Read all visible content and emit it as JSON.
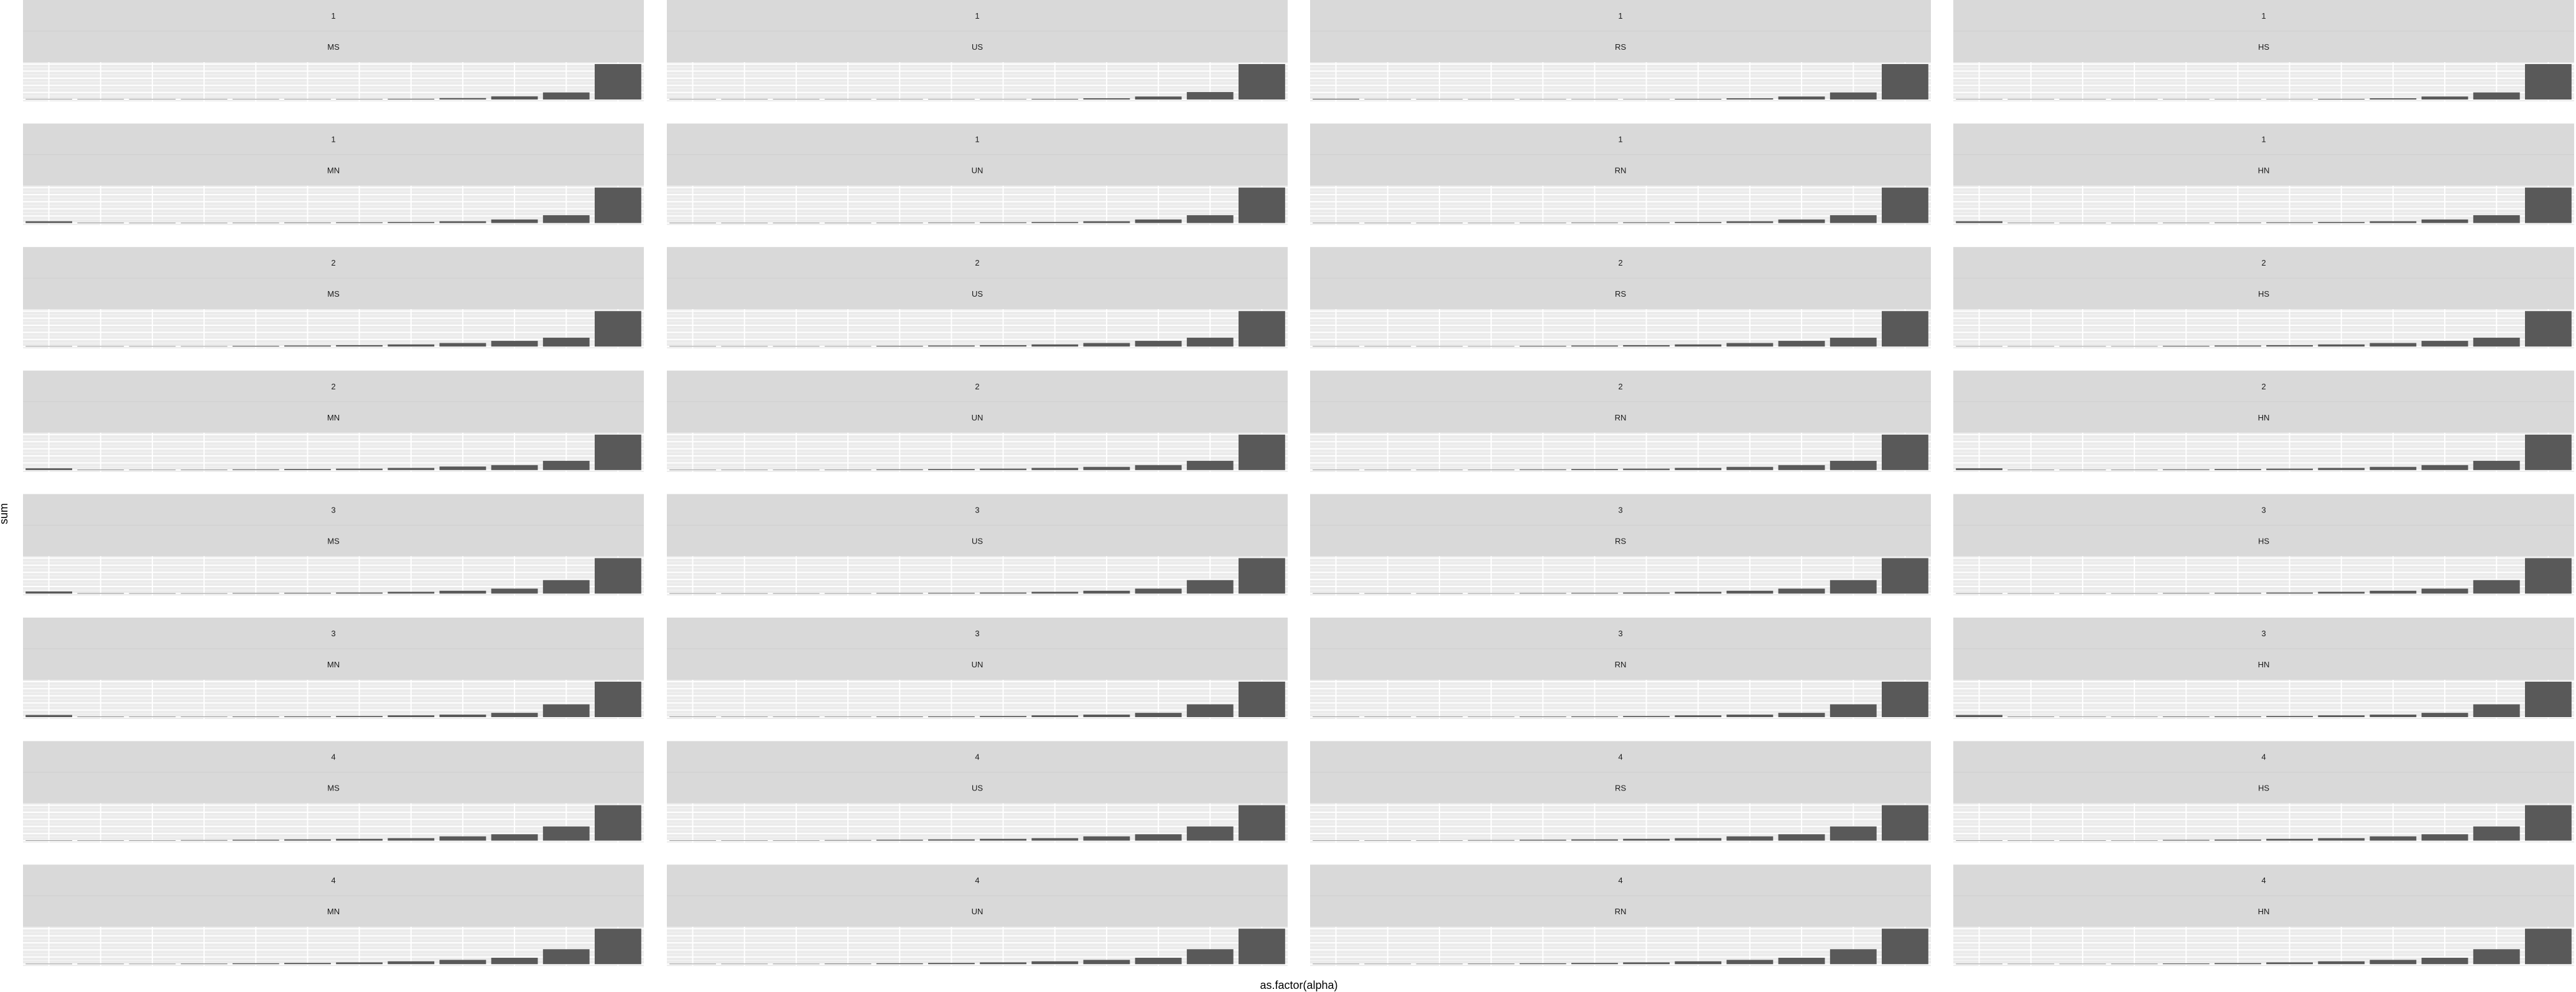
{
  "chart_data": {
    "type": "bar",
    "xlabel": "as.factor(alpha)",
    "ylabel": "sum",
    "categories": [
      "",
      "",
      "",
      "",
      "",
      "",
      "",
      "",
      "",
      "",
      "",
      ""
    ],
    "grid": true,
    "colors": {
      "bar": "#595959",
      "panel_background": "#ebebeb",
      "strip_background": "#d9d9d9",
      "grid_major": "#ffffff",
      "grid_minor": "#f5f5f5"
    },
    "panels": [
      {
        "row_label": "1",
        "col_label": "MS",
        "values": [
          0.005,
          0.004,
          0.003,
          0.004,
          0.006,
          0.008,
          0.012,
          0.02,
          0.04,
          0.09,
          0.2,
          1.0
        ]
      },
      {
        "row_label": "1",
        "col_label": "US",
        "values": [
          0.004,
          0.003,
          0.003,
          0.004,
          0.005,
          0.007,
          0.01,
          0.018,
          0.035,
          0.085,
          0.21,
          1.0
        ]
      },
      {
        "row_label": "1",
        "col_label": "RS",
        "values": [
          0.02,
          0.004,
          0.003,
          0.004,
          0.005,
          0.007,
          0.01,
          0.018,
          0.035,
          0.085,
          0.2,
          1.0
        ]
      },
      {
        "row_label": "1",
        "col_label": "HS",
        "values": [
          0.004,
          0.003,
          0.003,
          0.004,
          0.005,
          0.007,
          0.01,
          0.018,
          0.035,
          0.085,
          0.2,
          1.0
        ]
      },
      {
        "row_label": "1",
        "col_label": "MN",
        "values": [
          0.05,
          0.012,
          0.01,
          0.01,
          0.012,
          0.015,
          0.02,
          0.03,
          0.05,
          0.1,
          0.22,
          1.0
        ]
      },
      {
        "row_label": "1",
        "col_label": "UN",
        "values": [
          0.01,
          0.008,
          0.008,
          0.01,
          0.012,
          0.015,
          0.02,
          0.03,
          0.05,
          0.1,
          0.22,
          1.0
        ]
      },
      {
        "row_label": "1",
        "col_label": "RN",
        "values": [
          0.01,
          0.008,
          0.008,
          0.01,
          0.012,
          0.015,
          0.02,
          0.03,
          0.05,
          0.1,
          0.22,
          1.0
        ]
      },
      {
        "row_label": "1",
        "col_label": "HN",
        "values": [
          0.05,
          0.012,
          0.01,
          0.01,
          0.012,
          0.015,
          0.02,
          0.03,
          0.05,
          0.1,
          0.22,
          1.0
        ]
      },
      {
        "row_label": "2",
        "col_label": "MS",
        "values": [
          0.004,
          0.004,
          0.005,
          0.01,
          0.02,
          0.03,
          0.04,
          0.06,
          0.1,
          0.16,
          0.25,
          1.0
        ]
      },
      {
        "row_label": "2",
        "col_label": "US",
        "values": [
          0.004,
          0.004,
          0.005,
          0.01,
          0.02,
          0.03,
          0.04,
          0.06,
          0.1,
          0.16,
          0.25,
          1.0
        ]
      },
      {
        "row_label": "2",
        "col_label": "RS",
        "values": [
          0.002,
          0.002,
          0.004,
          0.008,
          0.02,
          0.03,
          0.04,
          0.06,
          0.1,
          0.16,
          0.25,
          1.0
        ]
      },
      {
        "row_label": "2",
        "col_label": "HS",
        "values": [
          0.002,
          0.002,
          0.004,
          0.008,
          0.02,
          0.03,
          0.04,
          0.06,
          0.1,
          0.16,
          0.25,
          1.0
        ]
      },
      {
        "row_label": "2",
        "col_label": "MN",
        "values": [
          0.05,
          0.012,
          0.01,
          0.012,
          0.02,
          0.03,
          0.04,
          0.06,
          0.1,
          0.14,
          0.26,
          1.0
        ]
      },
      {
        "row_label": "2",
        "col_label": "UN",
        "values": [
          0.01,
          0.01,
          0.01,
          0.012,
          0.02,
          0.03,
          0.04,
          0.06,
          0.09,
          0.14,
          0.26,
          1.0
        ]
      },
      {
        "row_label": "2",
        "col_label": "RN",
        "values": [
          0.004,
          0.004,
          0.008,
          0.012,
          0.02,
          0.03,
          0.04,
          0.06,
          0.09,
          0.14,
          0.26,
          1.0
        ]
      },
      {
        "row_label": "2",
        "col_label": "HN",
        "values": [
          0.05,
          0.012,
          0.01,
          0.012,
          0.02,
          0.03,
          0.04,
          0.06,
          0.09,
          0.14,
          0.26,
          1.0
        ]
      },
      {
        "row_label": "3",
        "col_label": "MS",
        "values": [
          0.06,
          0.012,
          0.01,
          0.01,
          0.015,
          0.02,
          0.03,
          0.05,
          0.08,
          0.14,
          0.38,
          1.0
        ]
      },
      {
        "row_label": "3",
        "col_label": "US",
        "values": [
          0.008,
          0.008,
          0.01,
          0.01,
          0.015,
          0.02,
          0.03,
          0.05,
          0.08,
          0.14,
          0.38,
          1.0
        ]
      },
      {
        "row_label": "3",
        "col_label": "RS",
        "values": [
          0.008,
          0.008,
          0.01,
          0.01,
          0.015,
          0.02,
          0.03,
          0.05,
          0.08,
          0.14,
          0.38,
          1.0
        ]
      },
      {
        "row_label": "3",
        "col_label": "HS",
        "values": [
          0.004,
          0.004,
          0.006,
          0.008,
          0.015,
          0.02,
          0.03,
          0.05,
          0.08,
          0.14,
          0.38,
          1.0
        ]
      },
      {
        "row_label": "3",
        "col_label": "MN",
        "values": [
          0.06,
          0.012,
          0.01,
          0.01,
          0.015,
          0.02,
          0.03,
          0.05,
          0.07,
          0.12,
          0.36,
          1.0
        ]
      },
      {
        "row_label": "3",
        "col_label": "UN",
        "values": [
          0.008,
          0.008,
          0.01,
          0.01,
          0.015,
          0.02,
          0.03,
          0.05,
          0.07,
          0.12,
          0.36,
          1.0
        ]
      },
      {
        "row_label": "3",
        "col_label": "RN",
        "values": [
          0.008,
          0.008,
          0.01,
          0.01,
          0.015,
          0.02,
          0.03,
          0.05,
          0.07,
          0.12,
          0.36,
          1.0
        ]
      },
      {
        "row_label": "3",
        "col_label": "HN",
        "values": [
          0.06,
          0.012,
          0.01,
          0.01,
          0.015,
          0.02,
          0.03,
          0.05,
          0.07,
          0.12,
          0.36,
          1.0
        ]
      },
      {
        "row_label": "4",
        "col_label": "MS",
        "values": [
          0.004,
          0.004,
          0.008,
          0.015,
          0.025,
          0.035,
          0.05,
          0.07,
          0.12,
          0.18,
          0.4,
          1.0
        ]
      },
      {
        "row_label": "4",
        "col_label": "US",
        "values": [
          0.004,
          0.004,
          0.008,
          0.015,
          0.025,
          0.035,
          0.05,
          0.07,
          0.12,
          0.18,
          0.4,
          1.0
        ]
      },
      {
        "row_label": "4",
        "col_label": "RS",
        "values": [
          0.002,
          0.002,
          0.006,
          0.015,
          0.025,
          0.035,
          0.05,
          0.07,
          0.12,
          0.18,
          0.4,
          1.0
        ]
      },
      {
        "row_label": "4",
        "col_label": "HS",
        "values": [
          0.002,
          0.002,
          0.005,
          0.01,
          0.02,
          0.03,
          0.05,
          0.07,
          0.12,
          0.18,
          0.4,
          1.0
        ]
      },
      {
        "row_label": "4",
        "col_label": "MN",
        "values": [
          0.004,
          0.004,
          0.008,
          0.015,
          0.025,
          0.035,
          0.05,
          0.08,
          0.12,
          0.18,
          0.42,
          1.0
        ]
      },
      {
        "row_label": "4",
        "col_label": "UN",
        "values": [
          0.004,
          0.004,
          0.008,
          0.015,
          0.025,
          0.035,
          0.05,
          0.08,
          0.12,
          0.18,
          0.42,
          1.0
        ]
      },
      {
        "row_label": "4",
        "col_label": "RN",
        "values": [
          0.002,
          0.002,
          0.008,
          0.015,
          0.025,
          0.035,
          0.05,
          0.08,
          0.12,
          0.18,
          0.42,
          1.0
        ]
      },
      {
        "row_label": "4",
        "col_label": "HN",
        "values": [
          0.002,
          0.002,
          0.006,
          0.012,
          0.02,
          0.03,
          0.05,
          0.08,
          0.12,
          0.18,
          0.42,
          1.0
        ]
      }
    ]
  }
}
